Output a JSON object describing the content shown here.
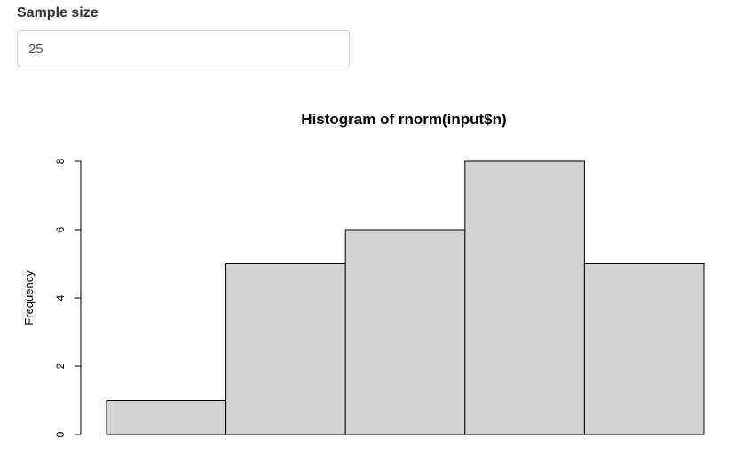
{
  "input": {
    "label": "Sample size",
    "value": "25"
  },
  "chart_data": {
    "type": "bar",
    "title": "Histogram of rnorm(input$n)",
    "xlabel": "",
    "ylabel": "Frequency",
    "values": [
      1,
      5,
      6,
      8,
      5
    ],
    "yticks": [
      "0",
      "2",
      "4",
      "6",
      "8"
    ],
    "ylim": [
      0,
      8
    ],
    "bar_fill": "#d3d3d3",
    "bar_stroke": "#000000"
  }
}
